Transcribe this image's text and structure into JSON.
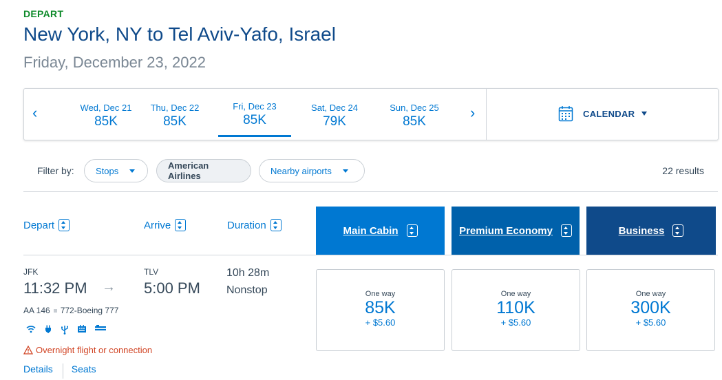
{
  "header": {
    "tag": "DEPART",
    "title": "New York, NY to Tel Aviv-Yafo, Israel",
    "date": "Friday, December 23, 2022"
  },
  "date_strip": {
    "prev_icon": "chevron-left-icon",
    "next_icon": "chevron-right-icon",
    "prev_glyph": "‹",
    "next_glyph": "›",
    "dates": [
      {
        "label": "Wed, Dec 21",
        "price": "85K"
      },
      {
        "label": "Thu, Dec 22",
        "price": "85K"
      },
      {
        "label": "Fri, Dec 23",
        "price": "85K",
        "active": true
      },
      {
        "label": "Sat, Dec 24",
        "price": "79K"
      },
      {
        "label": "Sun, Dec 25",
        "price": "85K"
      }
    ],
    "calendar_label": "CALENDAR"
  },
  "filters": {
    "label": "Filter by:",
    "stops": "Stops",
    "airline": "American Airlines",
    "nearby": "Nearby airports",
    "results": "22 results"
  },
  "columns": {
    "depart": "Depart",
    "arrive": "Arrive",
    "duration": "Duration",
    "cabins": [
      {
        "label": "Main Cabin",
        "color": "#0078d2"
      },
      {
        "label": "Premium Economy",
        "color": "#0061ab"
      },
      {
        "label": "Business",
        "color": "#0f4a8a"
      }
    ]
  },
  "flight": {
    "origin": "JFK",
    "depart_time": "11:32 PM",
    "destination": "TLV",
    "arrive_time": "5:00 PM",
    "duration": "10h 28m",
    "stops": "Nonstop",
    "flight_number": "AA 146",
    "aircraft": "772-Boeing 777",
    "amenities": [
      "wifi-icon",
      "power-outlet-icon",
      "usb-icon",
      "entertainment-icon",
      "lie-flat-seat-icon"
    ],
    "warning": "Overnight flight or connection",
    "details_link": "Details",
    "seats_link": "Seats",
    "prices": [
      {
        "label": "One way",
        "points": "85K",
        "tax": "+ $5.60"
      },
      {
        "label": "One way",
        "points": "110K",
        "tax": "+ $5.60"
      },
      {
        "label": "One way",
        "points": "300K",
        "tax": "+ $5.60"
      }
    ]
  },
  "colors": {
    "accent": "#0078d2",
    "navy": "#0f4a8a",
    "depart_green": "#0e8a2a",
    "warning": "#d14424"
  }
}
